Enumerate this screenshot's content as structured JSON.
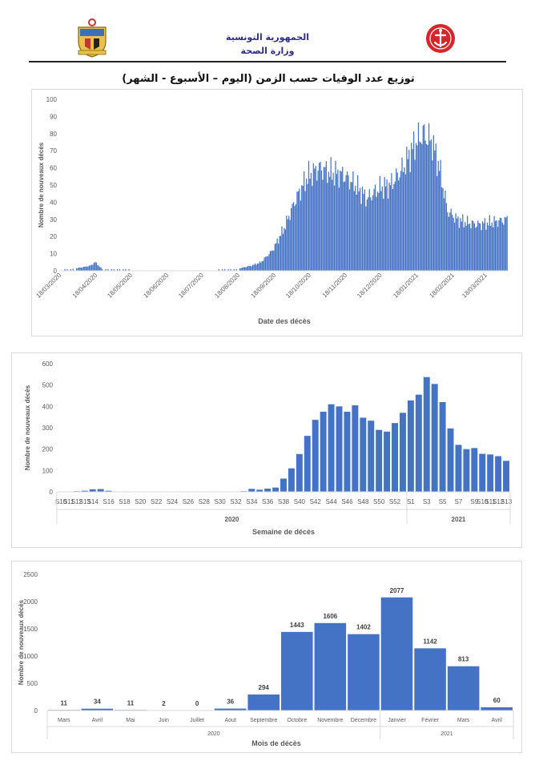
{
  "header": {
    "ministry_line1": "الجمهورية التونسية",
    "ministry_line2": "وزارة الصحة",
    "main_title": "توزيع عدد الوفيات حسب الزمن (اليوم – الأسبوع - الشهر)",
    "logo_left_icon": "tunisia-coat-of-arms-icon",
    "logo_right_icon": "health-ministry-emblem-icon"
  },
  "colors": {
    "bar": "#4472C4",
    "grid": "#d9d9d9",
    "axis_text": "#595959"
  },
  "chart_data": [
    {
      "type": "bar",
      "title": "",
      "xlabel": "Date des décès",
      "ylabel": "Nombre de nouveaux décès",
      "ylim": [
        0,
        100
      ],
      "yticks": [
        0,
        10,
        20,
        30,
        40,
        50,
        60,
        70,
        80,
        90,
        100
      ],
      "grid": false,
      "x_tick_labels": [
        "18/03/2020",
        "18/04/2020",
        "18/05/2020",
        "18/06/2020",
        "18/07/2020",
        "18/08/2020",
        "18/09/2020",
        "18/10/2020",
        "18/11/2020",
        "18/12/2020",
        "18/01/2021",
        "18/02/2021",
        "18/03/2021"
      ],
      "x_start": "2020-03-18",
      "x_end": "2021-04-04",
      "daily_profile": [
        [
          "2020-03-18",
          0
        ],
        [
          "2020-03-26",
          1
        ],
        [
          "2020-04-05",
          2
        ],
        [
          "2020-04-12",
          3
        ],
        [
          "2020-04-16",
          5
        ],
        [
          "2020-04-22",
          1
        ],
        [
          "2020-05-05",
          1
        ],
        [
          "2020-05-20",
          0
        ],
        [
          "2020-07-25",
          0
        ],
        [
          "2020-08-15",
          1
        ],
        [
          "2020-08-28",
          3
        ],
        [
          "2020-09-05",
          5
        ],
        [
          "2020-09-15",
          12
        ],
        [
          "2020-09-25",
          25
        ],
        [
          "2020-10-05",
          42
        ],
        [
          "2020-10-15",
          55
        ],
        [
          "2020-10-25",
          60
        ],
        [
          "2020-11-05",
          57
        ],
        [
          "2020-11-15",
          56
        ],
        [
          "2020-11-25",
          50
        ],
        [
          "2020-12-05",
          42
        ],
        [
          "2020-12-15",
          48
        ],
        [
          "2020-12-25",
          50
        ],
        [
          "2021-01-05",
          60
        ],
        [
          "2021-01-15",
          74
        ],
        [
          "2021-01-22",
          80
        ],
        [
          "2021-01-30",
          75
        ],
        [
          "2021-02-05",
          60
        ],
        [
          "2021-02-12",
          35
        ],
        [
          "2021-02-20",
          30
        ],
        [
          "2021-03-01",
          28
        ],
        [
          "2021-03-10",
          27
        ],
        [
          "2021-03-20",
          28
        ],
        [
          "2021-04-04",
          30
        ]
      ]
    },
    {
      "type": "bar",
      "title": "",
      "xlabel": "Semaine de décès",
      "ylabel": "Nombre de nouveaux décès",
      "ylim": [
        0,
        600
      ],
      "yticks": [
        0,
        100,
        200,
        300,
        400,
        500,
        600
      ],
      "grid": false,
      "categories": [
        "S10",
        "S11",
        "S12",
        "S13",
        "S14",
        "S15",
        "S16",
        "S17",
        "S18",
        "S19",
        "S20",
        "S21",
        "S22",
        "S23",
        "S24",
        "S25",
        "S26",
        "S27",
        "S28",
        "S29",
        "S30",
        "S31",
        "S32",
        "S33",
        "S34",
        "S35",
        "S36",
        "S37",
        "S38",
        "S39",
        "S40",
        "S41",
        "S42",
        "S43",
        "S44",
        "S45",
        "S46",
        "S47",
        "S48",
        "S49",
        "S50",
        "S51",
        "S52",
        "S53",
        "S1",
        "S2",
        "S3",
        "S4",
        "S5",
        "S6",
        "S7",
        "S8",
        "S9",
        "S10",
        "S11",
        "S12",
        "S13"
      ],
      "values": [
        1,
        2,
        3,
        5,
        12,
        13,
        5,
        2,
        2,
        1,
        0,
        0,
        0,
        0,
        0,
        0,
        0,
        0,
        0,
        0,
        1,
        1,
        2,
        3,
        14,
        10,
        15,
        20,
        62,
        110,
        177,
        262,
        337,
        375,
        410,
        400,
        375,
        405,
        347,
        333,
        290,
        282,
        322,
        370,
        428,
        455,
        537,
        505,
        420,
        297,
        220,
        200,
        205,
        178,
        175,
        167,
        145
      ],
      "tick_labels_shown": [
        "S10",
        "S12",
        "S14",
        "S16",
        "S18",
        "S20",
        "S22",
        "S24",
        "S26",
        "S28",
        "S30",
        "S32",
        "S34",
        "S36",
        "S38",
        "S40",
        "S42",
        "S44",
        "S46",
        "S48",
        "S50",
        "S52",
        "S1",
        "S3",
        "S5",
        "S7",
        "S9",
        "S11",
        "S13"
      ],
      "year_groups": [
        "2020",
        "2021"
      ],
      "year_split_index": 44
    },
    {
      "type": "bar",
      "title": "",
      "xlabel": "Mois de décès",
      "ylabel": "Nombre de nouveaux décès",
      "ylim": [
        0,
        2500
      ],
      "yticks": [
        0,
        500,
        1000,
        1500,
        2000,
        2500
      ],
      "grid": false,
      "categories": [
        "Mars",
        "Avril",
        "Mai",
        "Juin",
        "Juillet",
        "Aout",
        "Septembre",
        "Octobre",
        "Novembre",
        "Décembre",
        "Janvier",
        "Février",
        "Mars",
        "Avril"
      ],
      "values": [
        11,
        34,
        11,
        2,
        0,
        36,
        294,
        1443,
        1606,
        1402,
        2077,
        1142,
        813,
        60
      ],
      "year_groups": [
        "2020",
        "2021"
      ],
      "year_split_index": 10
    }
  ]
}
